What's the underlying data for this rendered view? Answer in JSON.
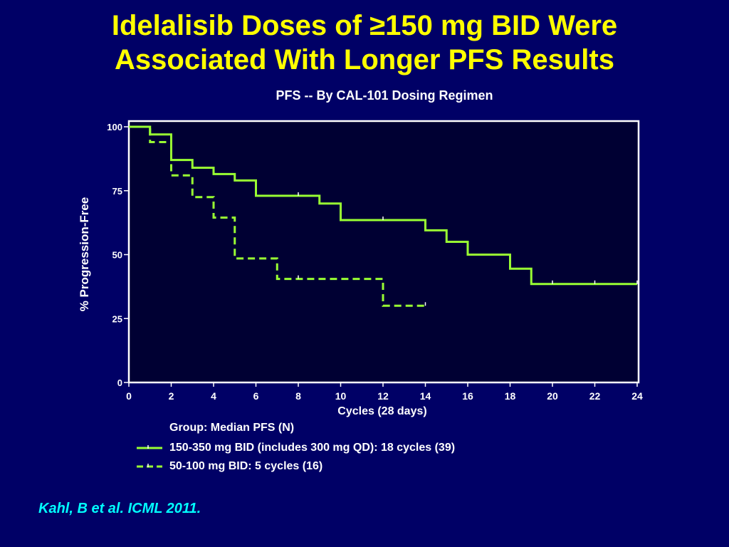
{
  "slide": {
    "title_line1": "Idelalisib Doses of ≥150 mg BID Were",
    "title_line2": "Associated With Longer PFS Results",
    "citation": "Kahl, B et al. ICML 2011.",
    "background_color": "#000066",
    "title_color": "#FFFF00",
    "citation_color": "#00FFFF"
  },
  "chart_data": {
    "type": "line",
    "subtype": "kaplan-meier step",
    "title": "PFS -- By CAL-101 Dosing Regimen",
    "xlabel": "Cycles (28 days)",
    "ylabel": "% Progression-Free",
    "xlim": [
      0,
      24
    ],
    "ylim": [
      0,
      100
    ],
    "xticks": [
      "0",
      "2",
      "4",
      "6",
      "8",
      "10",
      "12",
      "14",
      "16",
      "18",
      "20",
      "22",
      "24"
    ],
    "yticks": [
      "0",
      "25",
      "50",
      "75",
      "100"
    ],
    "grid": false,
    "plot_background": "#000033",
    "legend_title": "Group: Median PFS (N)",
    "series": [
      {
        "name": "150-350 mg BID (includes 300 mg QD): 18 cycles (39)",
        "color": "#99FF33",
        "dash": "solid",
        "steps": [
          [
            0,
            100
          ],
          [
            1,
            97
          ],
          [
            2,
            87
          ],
          [
            3,
            84
          ],
          [
            4,
            81.5
          ],
          [
            5,
            79
          ],
          [
            6,
            73
          ],
          [
            9,
            70
          ],
          [
            10,
            63.5
          ],
          [
            14,
            59.5
          ],
          [
            15,
            55
          ],
          [
            16,
            50
          ],
          [
            18,
            44.5
          ],
          [
            19,
            38.5
          ],
          [
            24,
            38.5
          ]
        ],
        "censored": [
          [
            8,
            73
          ],
          [
            12,
            63.5
          ],
          [
            20,
            38.5
          ],
          [
            22,
            38.5
          ],
          [
            24,
            38.5
          ]
        ]
      },
      {
        "name": "50-100 mg BID: 5 cycles (16)",
        "color": "#99FF33",
        "dash": "dashed",
        "steps": [
          [
            0,
            100
          ],
          [
            1,
            94
          ],
          [
            2,
            81
          ],
          [
            3,
            72.5
          ],
          [
            4,
            64.5
          ],
          [
            5,
            48.5
          ],
          [
            7,
            40.5
          ],
          [
            12,
            30
          ],
          [
            14,
            30
          ]
        ],
        "censored": [
          [
            8,
            40.5
          ],
          [
            14,
            30
          ]
        ]
      }
    ]
  }
}
